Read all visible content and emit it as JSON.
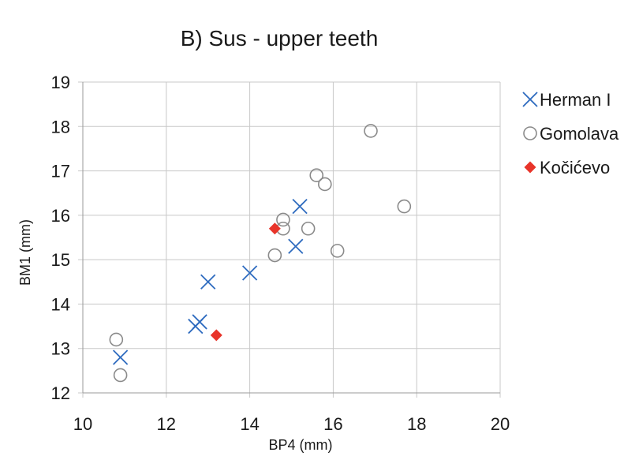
{
  "chart_data": {
    "type": "scatter",
    "title": "B) Sus - upper teeth",
    "xlabel": "BP4 (mm)",
    "ylabel": "BM1 (mm)",
    "xlim": [
      10,
      20
    ],
    "ylim": [
      12,
      19
    ],
    "xticks": [
      10,
      12,
      14,
      16,
      18,
      20
    ],
    "yticks": [
      12,
      13,
      14,
      15,
      16,
      17,
      18,
      19
    ],
    "grid": true,
    "legend": "right",
    "series": [
      {
        "name": "Herman I",
        "marker": "x",
        "color": "#2e6bbf",
        "points": [
          [
            10.9,
            12.8
          ],
          [
            12.7,
            13.5
          ],
          [
            12.8,
            13.6
          ],
          [
            13.0,
            14.5
          ],
          [
            14.0,
            14.7
          ],
          [
            15.1,
            15.3
          ],
          [
            15.2,
            16.2
          ]
        ]
      },
      {
        "name": "Gomolava",
        "marker": "circle-open",
        "color": "#8a8a8a",
        "points": [
          [
            10.8,
            13.2
          ],
          [
            10.9,
            12.4
          ],
          [
            14.6,
            15.1
          ],
          [
            14.8,
            15.9
          ],
          [
            14.8,
            15.7
          ],
          [
            15.4,
            15.7
          ],
          [
            15.6,
            16.9
          ],
          [
            15.8,
            16.7
          ],
          [
            16.1,
            15.2
          ],
          [
            16.9,
            17.9
          ],
          [
            17.7,
            16.2
          ]
        ]
      },
      {
        "name": "Kočićevo",
        "marker": "diamond",
        "color": "#e8342a",
        "points": [
          [
            14.6,
            15.7
          ],
          [
            13.2,
            13.3
          ]
        ]
      }
    ]
  }
}
